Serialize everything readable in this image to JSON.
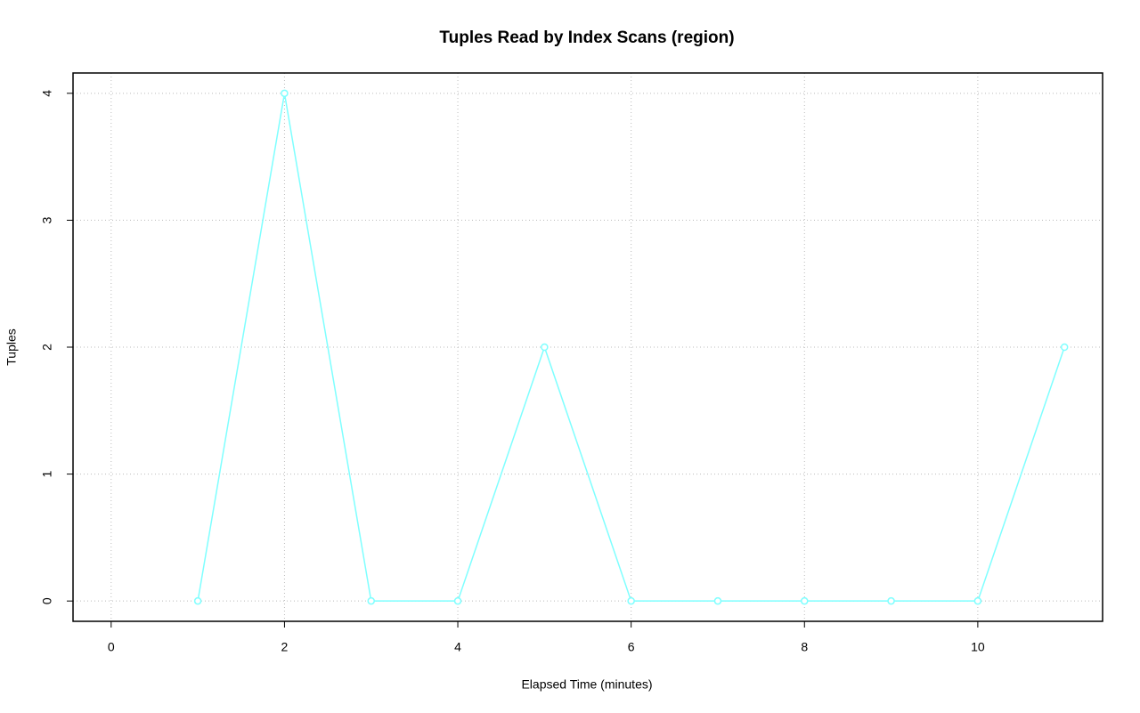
{
  "chart_data": {
    "type": "line",
    "title": "Tuples Read by Index Scans (region)",
    "x_label": "Elapsed Time (minutes)",
    "y_label": "Tuples",
    "x": [
      1,
      2,
      3,
      4,
      5,
      6,
      7,
      8,
      9,
      10,
      11
    ],
    "series": [
      {
        "name": "region",
        "color": "#7fffff",
        "values": [
          0,
          4,
          0,
          0,
          2,
          0,
          0,
          0,
          0,
          0,
          2
        ]
      }
    ],
    "xlim": [
      -0.44,
      11.44
    ],
    "xticks": [
      0,
      2,
      4,
      6,
      8,
      10
    ],
    "ylim": [
      -0.16,
      4.16
    ],
    "yticks": [
      0,
      1,
      2,
      3,
      4
    ],
    "grid": true
  }
}
